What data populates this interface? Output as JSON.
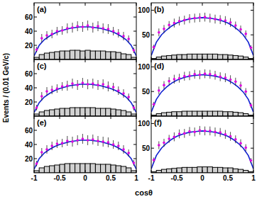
{
  "chart_data": [
    {
      "type": "histogram",
      "title": "(a)",
      "xlim": [
        -1,
        1
      ],
      "xticks": [
        -1,
        -0.5,
        0,
        0.5,
        1
      ],
      "ylim": [
        0,
        80
      ],
      "yticks": [
        20,
        40,
        60
      ],
      "tick_labels": "y",
      "bins": [
        -1,
        -0.9,
        -0.8,
        -0.7,
        -0.6,
        -0.5,
        -0.4,
        -0.3,
        -0.2,
        -0.1,
        0,
        0.1,
        0.2,
        0.3,
        0.4,
        0.5,
        0.6,
        0.7,
        0.8,
        0.9,
        1
      ],
      "series": [
        {
          "type": "scatter",
          "color": "#e000e0",
          "marker": "circle",
          "x": [
            -0.95,
            -0.85,
            -0.75,
            -0.65,
            -0.55,
            -0.45,
            -0.35,
            -0.25,
            -0.15,
            -0.05,
            0.05,
            0.15,
            0.25,
            0.35,
            0.45,
            0.55,
            0.65,
            0.75,
            0.85,
            0.95
          ],
          "values": [
            14,
            30,
            34,
            36,
            40,
            41,
            44,
            45,
            47,
            46,
            48,
            45,
            47,
            44,
            43,
            40,
            37,
            33,
            29,
            13
          ],
          "errors": [
            4,
            6,
            6,
            6,
            6,
            6,
            7,
            7,
            7,
            7,
            7,
            7,
            7,
            7,
            7,
            6,
            6,
            6,
            5,
            4
          ]
        },
        {
          "type": "line",
          "color": "#1020d0",
          "x": [
            -1,
            -0.9,
            -0.8,
            -0.7,
            -0.6,
            -0.5,
            -0.4,
            -0.3,
            -0.2,
            -0.1,
            0,
            0.1,
            0.2,
            0.3,
            0.4,
            0.5,
            0.6,
            0.7,
            0.8,
            0.9,
            1
          ],
          "values": [
            5,
            20,
            28,
            33,
            37,
            40,
            42,
            44,
            45,
            46,
            46,
            46,
            45,
            44,
            42,
            40,
            37,
            33,
            28,
            20,
            5
          ]
        },
        {
          "type": "histogram",
          "color": "#d0d0d0",
          "values": [
            3,
            7,
            9,
            10,
            11,
            12,
            12,
            13,
            13,
            12,
            13,
            12,
            12,
            12,
            11,
            11,
            10,
            8,
            7,
            3
          ]
        }
      ]
    },
    {
      "type": "histogram",
      "title": "(b)",
      "xlim": [
        -1,
        1
      ],
      "xticks": [
        -1,
        -0.5,
        0,
        0.5,
        1
      ],
      "ylim": [
        0,
        115
      ],
      "yticks": [
        50,
        100
      ],
      "tick_labels": "y",
      "bins": [
        -1,
        -0.9,
        -0.8,
        -0.7,
        -0.6,
        -0.5,
        -0.4,
        -0.3,
        -0.2,
        -0.1,
        0,
        0.1,
        0.2,
        0.3,
        0.4,
        0.5,
        0.6,
        0.7,
        0.8,
        0.9,
        1
      ],
      "series": [
        {
          "type": "scatter",
          "color": "#e000e0",
          "marker": "circle",
          "x": [
            -0.95,
            -0.85,
            -0.75,
            -0.65,
            -0.55,
            -0.45,
            -0.35,
            -0.25,
            -0.15,
            -0.05,
            0.05,
            0.15,
            0.25,
            0.35,
            0.45,
            0.55,
            0.65,
            0.75,
            0.85,
            0.95
          ],
          "values": [
            25,
            55,
            62,
            70,
            74,
            78,
            80,
            83,
            84,
            85,
            86,
            84,
            82,
            81,
            79,
            75,
            69,
            61,
            52,
            24
          ],
          "errors": [
            5,
            8,
            8,
            8,
            9,
            9,
            9,
            9,
            9,
            9,
            9,
            9,
            9,
            9,
            9,
            9,
            8,
            8,
            7,
            5
          ]
        },
        {
          "type": "line",
          "color": "#1020d0",
          "x": [
            -1,
            -0.9,
            -0.8,
            -0.7,
            -0.6,
            -0.5,
            -0.4,
            -0.3,
            -0.2,
            -0.1,
            0,
            0.1,
            0.2,
            0.3,
            0.4,
            0.5,
            0.6,
            0.7,
            0.8,
            0.9,
            1
          ],
          "values": [
            8,
            35,
            50,
            60,
            68,
            74,
            78,
            81,
            83,
            84,
            85,
            84,
            83,
            81,
            78,
            74,
            68,
            60,
            50,
            35,
            8
          ]
        },
        {
          "type": "histogram",
          "color": "#d0d0d0",
          "values": [
            2,
            5,
            7,
            8,
            9,
            10,
            10,
            11,
            11,
            11,
            11,
            11,
            11,
            10,
            10,
            9,
            8,
            7,
            5,
            2
          ]
        }
      ]
    },
    {
      "type": "histogram",
      "title": "(c)",
      "ylabel": "Events / (0.01 GeV/c)",
      "xlim": [
        -1,
        1
      ],
      "xticks": [
        -1,
        -0.5,
        0,
        0.5,
        1
      ],
      "ylim": [
        0,
        80
      ],
      "yticks": [
        20,
        40,
        60
      ],
      "tick_labels": "y",
      "bins": [
        -1,
        -0.9,
        -0.8,
        -0.7,
        -0.6,
        -0.5,
        -0.4,
        -0.3,
        -0.2,
        -0.1,
        0,
        0.1,
        0.2,
        0.3,
        0.4,
        0.5,
        0.6,
        0.7,
        0.8,
        0.9,
        1
      ],
      "series": [
        {
          "type": "scatter",
          "color": "#e000e0",
          "marker": "circle",
          "x": [
            -0.95,
            -0.85,
            -0.75,
            -0.65,
            -0.55,
            -0.45,
            -0.35,
            -0.25,
            -0.15,
            -0.05,
            0.05,
            0.15,
            0.25,
            0.35,
            0.45,
            0.55,
            0.65,
            0.75,
            0.85,
            0.95
          ],
          "values": [
            12,
            28,
            35,
            37,
            39,
            42,
            43,
            46,
            44,
            47,
            45,
            46,
            44,
            45,
            42,
            41,
            36,
            32,
            27,
            12
          ],
          "errors": [
            4,
            6,
            6,
            6,
            6,
            6,
            7,
            7,
            7,
            7,
            7,
            7,
            7,
            7,
            7,
            6,
            6,
            6,
            5,
            4
          ]
        },
        {
          "type": "line",
          "color": "#1020d0",
          "x": [
            -1,
            -0.9,
            -0.8,
            -0.7,
            -0.6,
            -0.5,
            -0.4,
            -0.3,
            -0.2,
            -0.1,
            0,
            0.1,
            0.2,
            0.3,
            0.4,
            0.5,
            0.6,
            0.7,
            0.8,
            0.9,
            1
          ],
          "values": [
            5,
            19,
            27,
            32,
            36,
            39,
            41,
            43,
            44,
            45,
            45,
            45,
            44,
            43,
            41,
            39,
            36,
            32,
            27,
            19,
            5
          ]
        },
        {
          "type": "histogram",
          "color": "#d0d0d0",
          "values": [
            3,
            6,
            8,
            9,
            10,
            11,
            11,
            12,
            12,
            12,
            12,
            12,
            11,
            11,
            11,
            10,
            9,
            8,
            6,
            3
          ]
        }
      ]
    },
    {
      "type": "histogram",
      "title": "(d)",
      "xlim": [
        -1,
        1
      ],
      "xticks": [
        -1,
        -0.5,
        0,
        0.5,
        1
      ],
      "ylim": [
        0,
        115
      ],
      "yticks": [
        50,
        100
      ],
      "tick_labels": "y",
      "bins": [
        -1,
        -0.9,
        -0.8,
        -0.7,
        -0.6,
        -0.5,
        -0.4,
        -0.3,
        -0.2,
        -0.1,
        0,
        0.1,
        0.2,
        0.3,
        0.4,
        0.5,
        0.6,
        0.7,
        0.8,
        0.9,
        1
      ],
      "series": [
        {
          "type": "scatter",
          "color": "#e000e0",
          "marker": "circle",
          "x": [
            -0.95,
            -0.85,
            -0.75,
            -0.65,
            -0.55,
            -0.45,
            -0.35,
            -0.25,
            -0.15,
            -0.05,
            0.05,
            0.15,
            0.25,
            0.35,
            0.45,
            0.55,
            0.65,
            0.75,
            0.85,
            0.95
          ],
          "values": [
            24,
            52,
            63,
            71,
            75,
            77,
            81,
            82,
            85,
            84,
            86,
            85,
            83,
            80,
            78,
            74,
            70,
            62,
            50,
            22
          ],
          "errors": [
            5,
            8,
            8,
            8,
            9,
            9,
            9,
            9,
            9,
            9,
            9,
            9,
            9,
            9,
            9,
            9,
            8,
            8,
            7,
            5
          ]
        },
        {
          "type": "line",
          "color": "#1020d0",
          "x": [
            -1,
            -0.9,
            -0.8,
            -0.7,
            -0.6,
            -0.5,
            -0.4,
            -0.3,
            -0.2,
            -0.1,
            0,
            0.1,
            0.2,
            0.3,
            0.4,
            0.5,
            0.6,
            0.7,
            0.8,
            0.9,
            1
          ],
          "values": [
            8,
            34,
            49,
            59,
            67,
            73,
            77,
            80,
            82,
            83,
            84,
            83,
            82,
            80,
            77,
            73,
            67,
            59,
            49,
            34,
            8
          ]
        },
        {
          "type": "histogram",
          "color": "#d0d0d0",
          "values": [
            2,
            5,
            7,
            8,
            9,
            9,
            10,
            10,
            10,
            10,
            10,
            10,
            10,
            10,
            9,
            9,
            8,
            7,
            5,
            2
          ]
        }
      ]
    },
    {
      "type": "histogram",
      "title": "(e)",
      "xlim": [
        -1,
        1
      ],
      "xticks": [
        -1,
        -0.5,
        0,
        0.5,
        1
      ],
      "ylim": [
        0,
        80
      ],
      "yticks": [
        20,
        40,
        60
      ],
      "bins": [
        -1,
        -0.9,
        -0.8,
        -0.7,
        -0.6,
        -0.5,
        -0.4,
        -0.3,
        -0.2,
        -0.1,
        0,
        0.1,
        0.2,
        0.3,
        0.4,
        0.5,
        0.6,
        0.7,
        0.8,
        0.9,
        1
      ],
      "series": [
        {
          "type": "scatter",
          "color": "#e000e0",
          "marker": "circle",
          "x": [
            -0.95,
            -0.85,
            -0.75,
            -0.65,
            -0.55,
            -0.45,
            -0.35,
            -0.25,
            -0.15,
            -0.05,
            0.05,
            0.15,
            0.25,
            0.35,
            0.45,
            0.55,
            0.65,
            0.75,
            0.85,
            0.95
          ],
          "values": [
            13,
            29,
            33,
            38,
            41,
            42,
            45,
            44,
            46,
            48,
            46,
            47,
            45,
            44,
            43,
            40,
            38,
            33,
            28,
            14
          ],
          "errors": [
            4,
            6,
            6,
            6,
            6,
            6,
            7,
            7,
            7,
            7,
            7,
            7,
            7,
            7,
            7,
            6,
            6,
            6,
            5,
            4
          ]
        },
        {
          "type": "line",
          "color": "#1020d0",
          "x": [
            -1,
            -0.9,
            -0.8,
            -0.7,
            -0.6,
            -0.5,
            -0.4,
            -0.3,
            -0.2,
            -0.1,
            0,
            0.1,
            0.2,
            0.3,
            0.4,
            0.5,
            0.6,
            0.7,
            0.8,
            0.9,
            1
          ],
          "values": [
            5,
            20,
            28,
            33,
            37,
            40,
            42,
            44,
            45,
            46,
            46,
            46,
            45,
            44,
            42,
            40,
            37,
            33,
            28,
            20,
            5
          ]
        },
        {
          "type": "histogram",
          "color": "#d0d0d0",
          "values": [
            3,
            7,
            9,
            10,
            11,
            12,
            13,
            13,
            13,
            13,
            13,
            13,
            12,
            12,
            12,
            11,
            10,
            9,
            7,
            3
          ]
        }
      ]
    },
    {
      "type": "histogram",
      "title": "(f)",
      "xlabel": "cosθ",
      "xlim": [
        -1,
        1
      ],
      "xticks": [
        -1,
        -0.5,
        0,
        0.5,
        1
      ],
      "ylim": [
        0,
        115
      ],
      "yticks": [
        50,
        100
      ],
      "bins": [
        -1,
        -0.9,
        -0.8,
        -0.7,
        -0.6,
        -0.5,
        -0.4,
        -0.3,
        -0.2,
        -0.1,
        0,
        0.1,
        0.2,
        0.3,
        0.4,
        0.5,
        0.6,
        0.7,
        0.8,
        0.9,
        1
      ],
      "series": [
        {
          "type": "scatter",
          "color": "#e000e0",
          "marker": "circle",
          "x": [
            -0.95,
            -0.85,
            -0.75,
            -0.65,
            -0.55,
            -0.45,
            -0.35,
            -0.25,
            -0.15,
            -0.05,
            0.05,
            0.15,
            0.25,
            0.35,
            0.45,
            0.55,
            0.65,
            0.75,
            0.85,
            0.95
          ],
          "values": [
            26,
            56,
            61,
            69,
            73,
            79,
            80,
            84,
            83,
            86,
            85,
            85,
            83,
            82,
            78,
            74,
            68,
            60,
            51,
            25
          ],
          "errors": [
            5,
            8,
            8,
            8,
            9,
            9,
            9,
            9,
            9,
            9,
            9,
            9,
            9,
            9,
            9,
            9,
            8,
            8,
            7,
            5
          ]
        },
        {
          "type": "line",
          "color": "#1020d0",
          "x": [
            -1,
            -0.9,
            -0.8,
            -0.7,
            -0.6,
            -0.5,
            -0.4,
            -0.3,
            -0.2,
            -0.1,
            0,
            0.1,
            0.2,
            0.3,
            0.4,
            0.5,
            0.6,
            0.7,
            0.8,
            0.9,
            1
          ],
          "values": [
            8,
            35,
            50,
            60,
            68,
            74,
            78,
            81,
            83,
            84,
            85,
            84,
            83,
            81,
            78,
            74,
            68,
            60,
            50,
            35,
            8
          ]
        },
        {
          "type": "histogram",
          "color": "#d0d0d0",
          "values": [
            2,
            5,
            7,
            8,
            9,
            10,
            11,
            11,
            11,
            12,
            12,
            12,
            11,
            11,
            10,
            10,
            8,
            7,
            5,
            2
          ]
        }
      ]
    }
  ]
}
